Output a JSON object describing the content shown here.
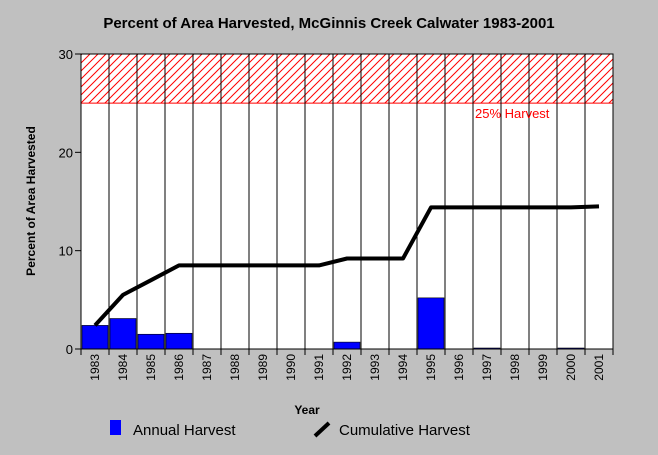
{
  "chart_data": {
    "type": "bar",
    "title": "Percent of Area Harvested, McGinnis Creek Calwater 1983-2001",
    "xlabel": "Year",
    "ylabel": "Percent of Area Harvested",
    "ylim": [
      0,
      30
    ],
    "yticks": [
      "0",
      "10",
      "20",
      "30"
    ],
    "categories": [
      "1983",
      "1984",
      "1985",
      "1986",
      "1987",
      "1988",
      "1989",
      "1990",
      "1991",
      "1992",
      "1993",
      "1994",
      "1995",
      "1996",
      "1997",
      "1998",
      "1999",
      "2000",
      "2001"
    ],
    "series": [
      {
        "name": "Annual Harvest",
        "type": "bar",
        "color": "#0000ff",
        "values": [
          2.4,
          3.1,
          1.5,
          1.6,
          0,
          0,
          0,
          0,
          0,
          0.7,
          0,
          0,
          5.2,
          0,
          0.1,
          0,
          0,
          0.1,
          0
        ]
      },
      {
        "name": "Cumulative Harvest",
        "type": "line",
        "color": "#000000",
        "values": [
          2.4,
          5.5,
          7.0,
          8.5,
          8.5,
          8.5,
          8.5,
          8.5,
          8.5,
          9.2,
          9.2,
          9.2,
          14.4,
          14.4,
          14.4,
          14.4,
          14.4,
          14.4,
          14.5
        ]
      }
    ],
    "threshold": {
      "label": "25% Harvest",
      "value": 25,
      "band_top": 30,
      "color": "#ff0000"
    },
    "grid": "vertical",
    "legend": "bottom"
  }
}
